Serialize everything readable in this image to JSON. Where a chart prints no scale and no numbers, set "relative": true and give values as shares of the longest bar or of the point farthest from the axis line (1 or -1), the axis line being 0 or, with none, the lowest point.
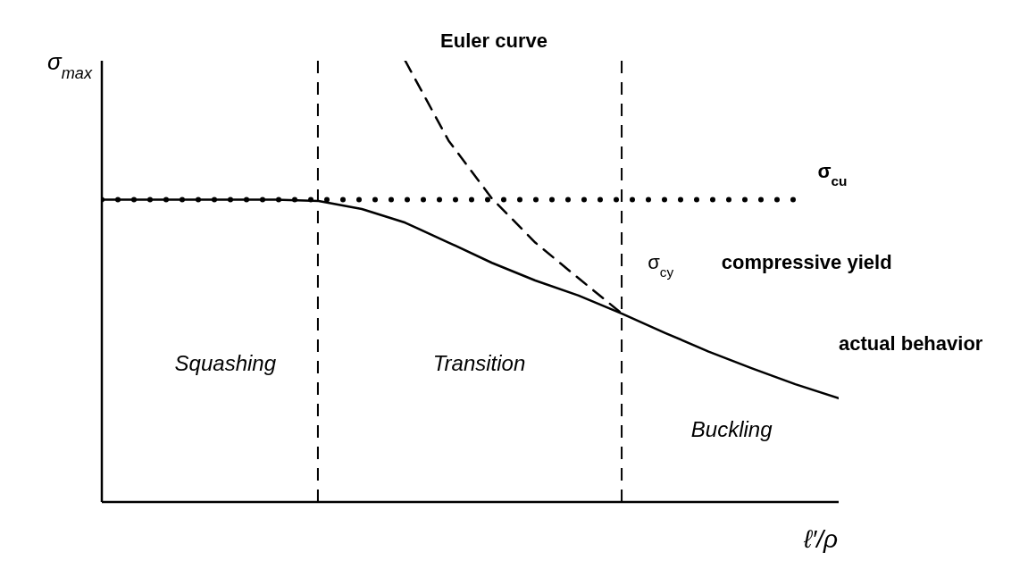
{
  "chart_data": {
    "type": "line",
    "relative": true,
    "ylabel": "σ$_{max}$",
    "xlabel": "ℓ′/ρ",
    "categories": [
      null,
      null,
      null,
      null,
      null,
      null,
      null,
      null,
      null,
      null,
      null,
      null,
      null,
      null,
      null,
      null,
      null,
      null
    ],
    "series": [
      {
        "name": "Euler curve",
        "color": "#000000",
        "line_style": "dashed",
        "values": [
          null,
          null,
          null,
          null,
          null,
          null,
          null,
          1.0,
          0.819,
          0.688,
          0.588,
          0.507,
          0.427,
          null,
          null,
          null,
          null,
          null
        ]
      },
      {
        "name": "σ$_{cu}$",
        "color": "#000000",
        "line_style": "dotted",
        "values": [
          0.685,
          0.685,
          0.685,
          0.685,
          0.685,
          0.685,
          0.685,
          0.685,
          0.685,
          0.685,
          0.685,
          0.685,
          0.685,
          0.685,
          0.685,
          0.685,
          0.685,
          null
        ]
      },
      {
        "name": "actual behavior",
        "color": "#000000",
        "line_style": "solid",
        "values": [
          0.685,
          0.685,
          0.685,
          0.685,
          0.685,
          0.682,
          0.664,
          0.633,
          0.588,
          0.542,
          0.502,
          0.468,
          0.427,
          0.383,
          0.341,
          0.303,
          0.267,
          0.235
        ]
      }
    ],
    "annotations": [
      "σ$_{cy}$",
      "compressive yield",
      "Squashing",
      "Transition",
      "Buckling"
    ]
  }
}
